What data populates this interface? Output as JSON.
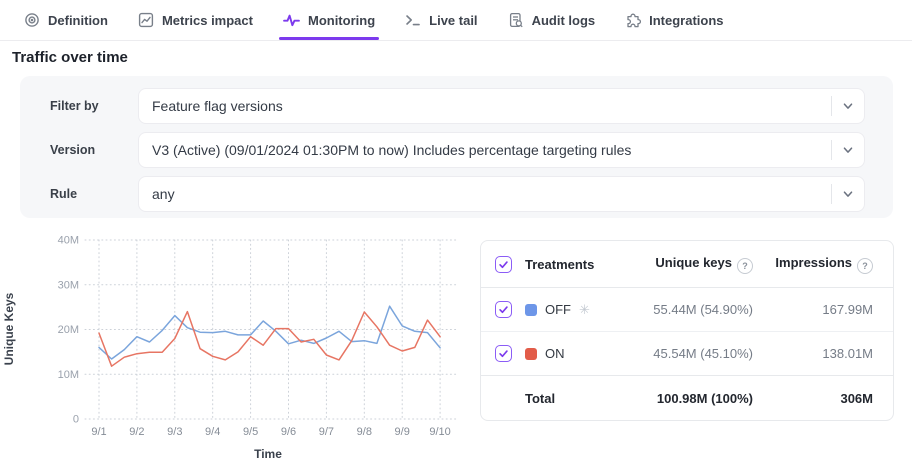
{
  "accent_color": "#7c3aed",
  "page_title": "Traffic over time",
  "tabs": [
    {
      "label": "Definition",
      "icon": "target-icon",
      "active": false
    },
    {
      "label": "Metrics impact",
      "icon": "metrics-chart-icon",
      "active": false
    },
    {
      "label": "Monitoring",
      "icon": "pulse-icon",
      "active": true
    },
    {
      "label": "Live tail",
      "icon": "terminal-icon",
      "active": false
    },
    {
      "label": "Audit logs",
      "icon": "audit-log-icon",
      "active": false
    },
    {
      "label": "Integrations",
      "icon": "puzzle-icon",
      "active": false
    }
  ],
  "filters": [
    {
      "label": "Filter by",
      "value": "Feature flag versions"
    },
    {
      "label": "Version",
      "value": "V3 (Active) (09/01/2024 01:30PM to now) Includes percentage targeting rules"
    },
    {
      "label": "Rule",
      "value": "any"
    }
  ],
  "chart_data": {
    "type": "line",
    "xlabel": "Time",
    "ylabel": "Unique Keys",
    "x_ticks": [
      "9/1",
      "9/2",
      "9/3",
      "9/4",
      "9/5",
      "9/6",
      "9/7",
      "9/8",
      "9/9",
      "9/10"
    ],
    "y_ticks": [
      "0",
      "10M",
      "20M",
      "30M",
      "40M"
    ],
    "ylim": [
      0,
      40
    ],
    "unit": "millions",
    "grid": "dotted",
    "legend_position": "table-right",
    "points_per_interval": 3,
    "series": [
      {
        "name": "OFF",
        "color": "#7ba5dc",
        "values": [
          16.0,
          13.4,
          15.5,
          18.4,
          17.2,
          19.8,
          23.1,
          20.4,
          19.4,
          19.3,
          19.6,
          18.8,
          18.8,
          21.9,
          19.6,
          16.8,
          17.6,
          16.9,
          18.1,
          19.6,
          17.3,
          17.5,
          16.9,
          25.2,
          20.8,
          19.6,
          19.3,
          15.9
        ]
      },
      {
        "name": "ON",
        "color": "#e77563",
        "values": [
          19.2,
          11.8,
          13.8,
          14.6,
          14.9,
          14.9,
          18.0,
          24.0,
          15.7,
          14.0,
          13.2,
          15.0,
          18.4,
          16.5,
          20.2,
          20.2,
          17.2,
          17.8,
          14.3,
          13.2,
          17.5,
          23.9,
          20.6,
          16.5,
          15.2,
          16.0,
          22.1,
          18.4
        ]
      }
    ]
  },
  "table": {
    "columns": [
      "Treatments",
      "Unique keys",
      "Impressions"
    ],
    "help_glyph": "?",
    "rows": [
      {
        "treatment": "OFF",
        "swatch": "#6d96e8",
        "default_marker": "✳",
        "unique_keys": "55.44M (54.90%)",
        "impressions": "167.99M",
        "checked": true
      },
      {
        "treatment": "ON",
        "swatch": "#e25c49",
        "default_marker": "",
        "unique_keys": "45.54M (45.10%)",
        "impressions": "138.01M",
        "checked": true
      }
    ],
    "total": {
      "label": "Total",
      "unique_keys": "100.98M (100%)",
      "impressions": "306M"
    }
  }
}
